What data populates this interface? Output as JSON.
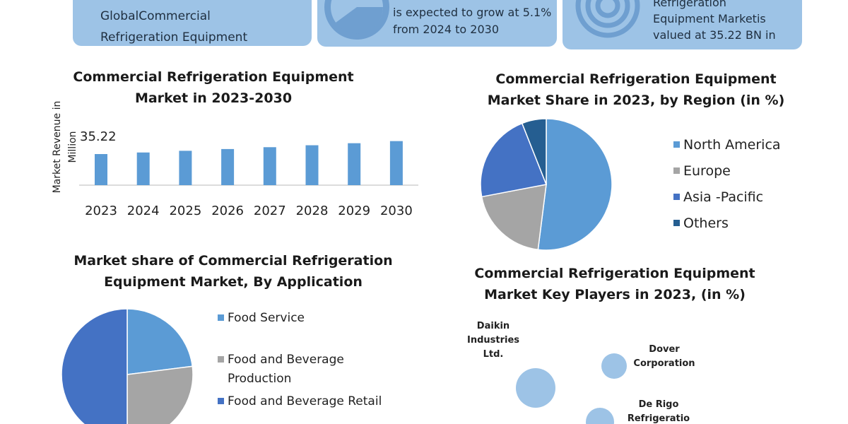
{
  "banners": [
    "GlobalCommercial\nRefrigeration Equipment",
    "is expected to grow at 5.1%\nfrom 2024 to 2030",
    "Refrigeration\nEquipment Marketis\nvalued at 35.22 BN in"
  ],
  "chart_data": [
    {
      "type": "bar",
      "title": "Commercial Refrigeration Equipment\nMarket in 2023-2030",
      "y_label": "Market Revenue in\nMillion",
      "categories": [
        "2023",
        "2024",
        "2025",
        "2026",
        "2027",
        "2028",
        "2029",
        "2030"
      ],
      "values": [
        35.22,
        37.0,
        38.9,
        40.9,
        43.0,
        45.2,
        47.5,
        49.9
      ],
      "color": "#5b9bd5"
    },
    {
      "type": "pie",
      "title": "Commercial Refrigeration Equipment\nMarket Share in 2023,  by Region (in %)",
      "categories": [
        "North America",
        "Europe",
        "Asia -Pacific",
        "Others"
      ],
      "values": [
        52,
        20,
        22,
        6
      ],
      "colors": [
        "#5b9bd5",
        "#a5a5a5",
        "#4472c4",
        "#255e91"
      ]
    },
    {
      "type": "pie",
      "title": "Market share of Commercial Refrigeration\nEquipment Market, By Application",
      "categories": [
        "Food Service",
        "Food and Beverage\nProduction",
        "Food and Beverage Retail"
      ],
      "values": [
        23,
        27,
        50
      ],
      "colors": [
        "#5b9bd5",
        "#a5a5a5",
        "#4472c4"
      ]
    },
    {
      "type": "bubble",
      "title": "Commercial Refrigeration Equipment\nMarket Key Players in 2023,  (in %)",
      "categories": [
        "Daikin\nIndustries\nLtd.",
        "Dover\nCorporation",
        "De Rigo\nRefrigeratio"
      ],
      "values": [
        28,
        18,
        20
      ],
      "color": "#9dc3e6"
    }
  ]
}
